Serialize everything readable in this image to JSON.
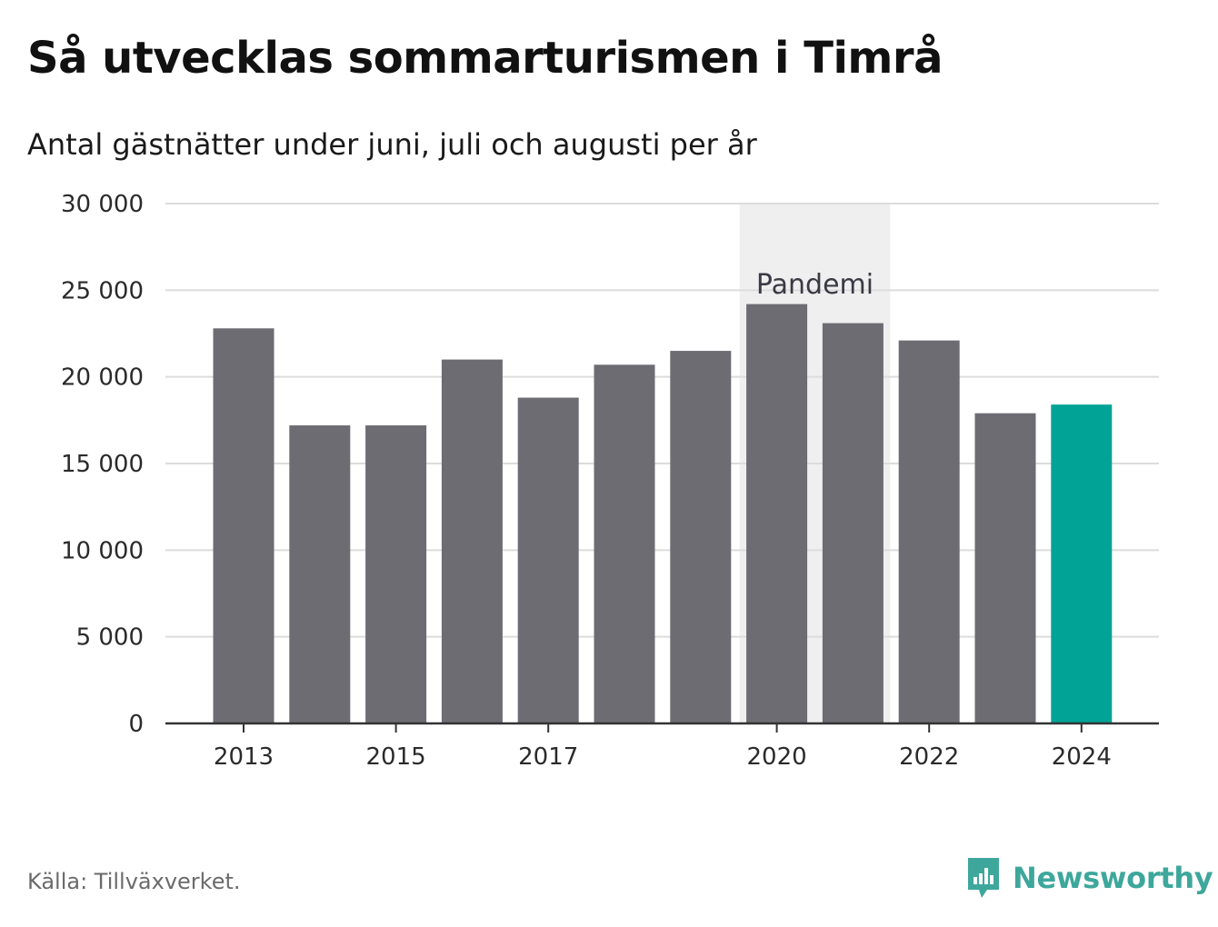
{
  "title": "Så utvecklas sommarturismen i Timrå",
  "subtitle": "Antal gästnätter under juni, juli och augusti per år",
  "source": "Källa: Tillväxverket.",
  "brand": {
    "name": "Newsworthy",
    "icon": "newsworthy-logo-icon",
    "color": "#3ea79c"
  },
  "colors": {
    "bar": "#6d6c73",
    "highlight": "#00a396",
    "grid": "#dcdcdc",
    "band": "#efefef",
    "axis": "#333333"
  },
  "chart_data": {
    "type": "bar",
    "title": "Så utvecklas sommarturismen i Timrå",
    "subtitle": "Antal gästnätter under juni, juli och augusti per år",
    "categories": [
      "2013",
      "2014",
      "2015",
      "2016",
      "2017",
      "2018",
      "2019",
      "2020",
      "2021",
      "2022",
      "2023",
      "2024"
    ],
    "values": [
      22800,
      17200,
      17200,
      21000,
      18800,
      20700,
      21500,
      24200,
      23100,
      22100,
      17900,
      18400
    ],
    "highlight_category": "2024",
    "x_tick_labels": [
      "2013",
      "2015",
      "2017",
      "2020",
      "2022",
      "2024"
    ],
    "y_ticks": [
      0,
      5000,
      10000,
      15000,
      20000,
      25000,
      30000
    ],
    "y_tick_labels": [
      "0",
      "5 000",
      "10 000",
      "15 000",
      "20 000",
      "25 000",
      "30 000"
    ],
    "ylim": [
      0,
      30000
    ],
    "grid": true,
    "xlabel": "",
    "ylabel": "",
    "annotations": [
      {
        "text": "Pandemi",
        "type": "shaded-band",
        "from": "2020",
        "to": "2021"
      }
    ]
  }
}
